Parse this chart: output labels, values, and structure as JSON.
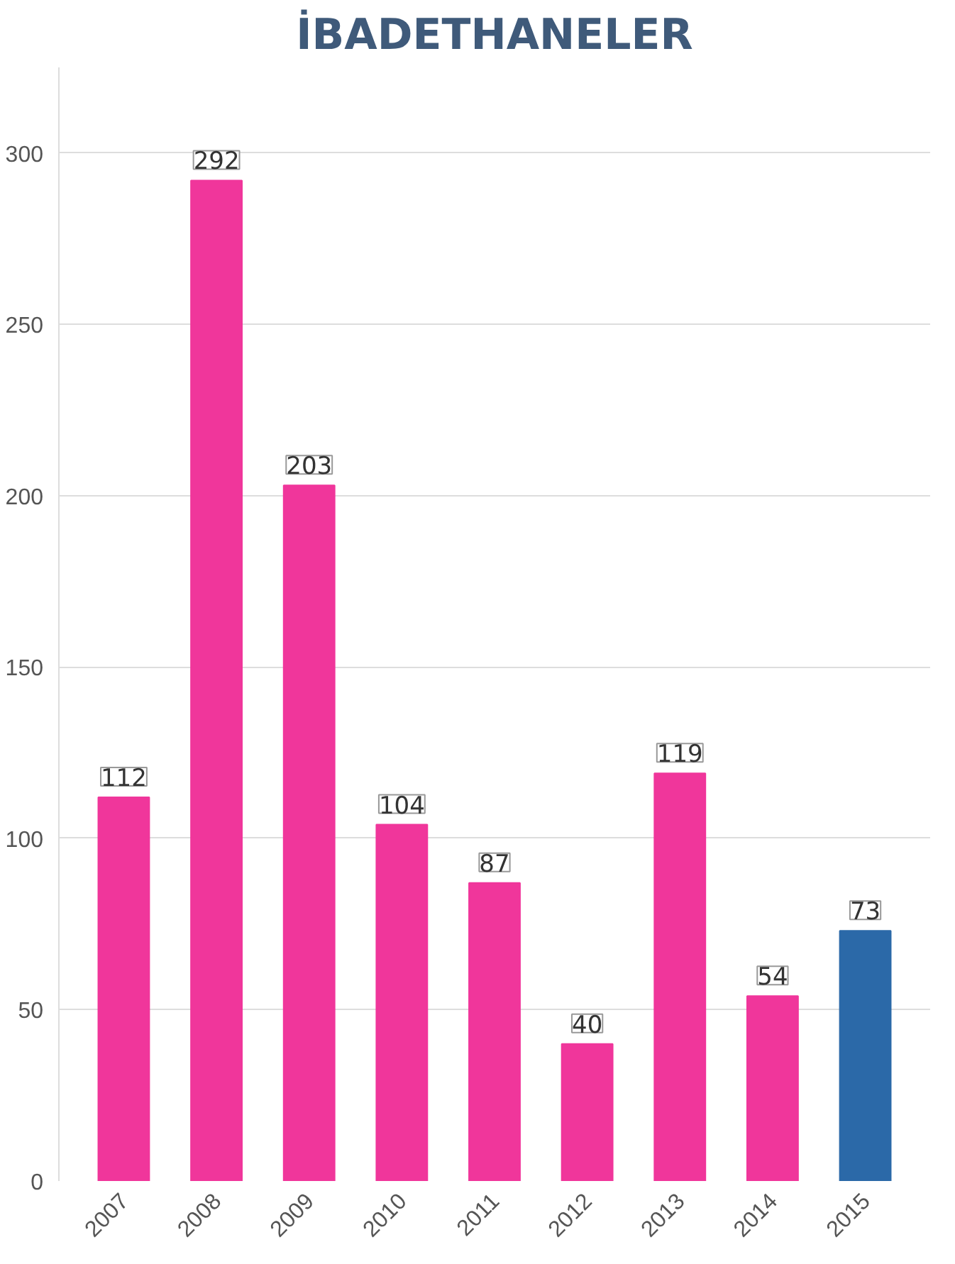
{
  "chart_data": {
    "type": "bar",
    "title": "İBADETHANELER",
    "categories": [
      "2007",
      "2008",
      "2009",
      "2010",
      "2011",
      "2012",
      "2013",
      "2014",
      "2015"
    ],
    "values": [
      112,
      292,
      203,
      104,
      87,
      40,
      119,
      54,
      73
    ],
    "colors": [
      "#f0369b",
      "#f0369b",
      "#f0369b",
      "#f0369b",
      "#f0369b",
      "#f0369b",
      "#f0369b",
      "#f0369b",
      "#2b69a8"
    ],
    "ylim": [
      0,
      325
    ],
    "yticks": [
      0,
      50,
      100,
      150,
      200,
      250,
      300
    ],
    "grid": "y",
    "data_labels": true
  }
}
